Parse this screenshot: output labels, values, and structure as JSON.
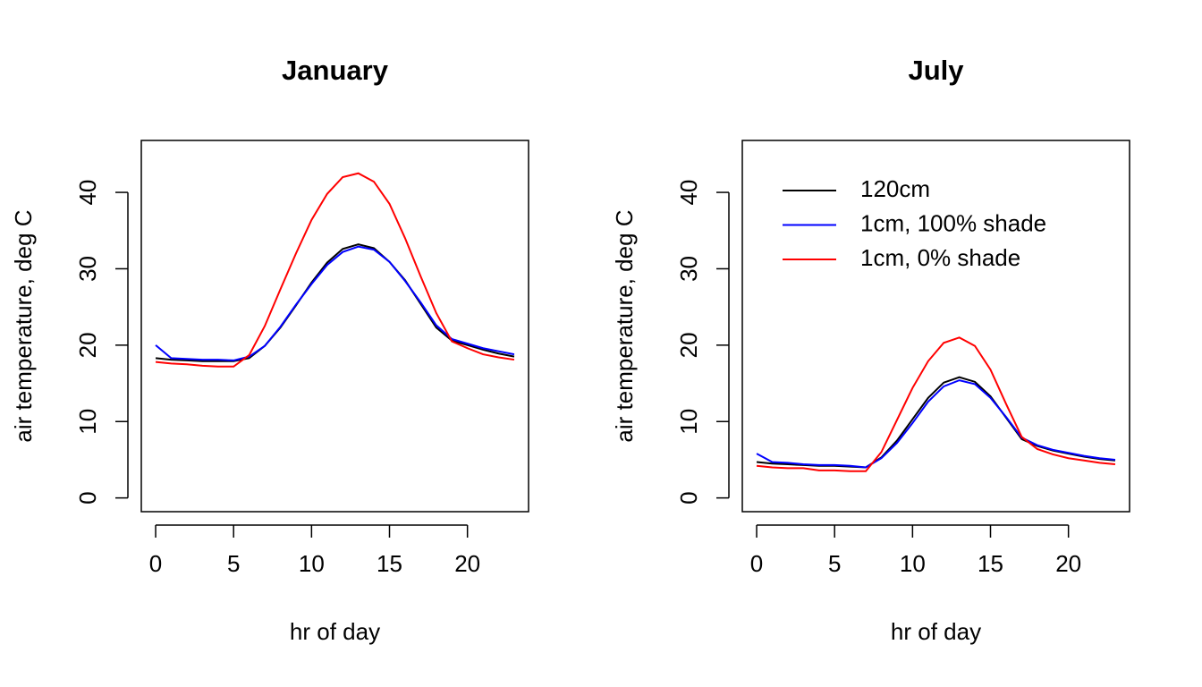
{
  "chart_data": [
    {
      "type": "line",
      "title": "January",
      "xlabel": "hr of day",
      "ylabel": "air temperature, deg C",
      "x": [
        0,
        1,
        2,
        3,
        4,
        5,
        6,
        7,
        8,
        9,
        10,
        11,
        12,
        13,
        14,
        15,
        16,
        17,
        18,
        19,
        20,
        21,
        22,
        23
      ],
      "series": [
        {
          "color": "#000000",
          "values": [
            18.3,
            18.1,
            18.0,
            17.9,
            17.9,
            17.9,
            18.3,
            19.9,
            22.3,
            25.2,
            28.2,
            30.8,
            32.6,
            33.2,
            32.7,
            30.9,
            28.5,
            25.4,
            22.3,
            20.6,
            20.0,
            19.4,
            18.9,
            18.5
          ]
        },
        {
          "color": "#0000ff",
          "values": [
            20.0,
            18.3,
            18.2,
            18.1,
            18.1,
            18.0,
            18.5,
            19.9,
            22.4,
            25.3,
            28.0,
            30.5,
            32.2,
            32.9,
            32.5,
            30.9,
            28.4,
            25.6,
            22.6,
            20.8,
            20.2,
            19.6,
            19.2,
            18.8
          ]
        },
        {
          "color": "#ff0000",
          "values": [
            17.8,
            17.6,
            17.5,
            17.3,
            17.2,
            17.2,
            18.7,
            22.5,
            27.3,
            32.0,
            36.4,
            39.8,
            42.0,
            42.5,
            41.4,
            38.5,
            34.0,
            29.0,
            24.2,
            20.5,
            19.6,
            18.8,
            18.4,
            18.1
          ]
        }
      ],
      "xlim": [
        -0.92,
        23.92
      ],
      "xticks": [
        0,
        5,
        10,
        15,
        20
      ],
      "ylim": [
        -1.8,
        46.8
      ],
      "yticks": [
        0,
        10,
        20,
        30,
        40
      ],
      "legend": false
    },
    {
      "type": "line",
      "title": "July",
      "xlabel": "hr of day",
      "ylabel": "air temperature, deg C",
      "x": [
        0,
        1,
        2,
        3,
        4,
        5,
        6,
        7,
        8,
        9,
        10,
        11,
        12,
        13,
        14,
        15,
        16,
        17,
        18,
        19,
        20,
        21,
        22,
        23
      ],
      "series": [
        {
          "name": "120cm",
          "color": "#000000",
          "values": [
            4.7,
            4.5,
            4.4,
            4.3,
            4.2,
            4.2,
            4.1,
            4.0,
            5.3,
            7.5,
            10.3,
            13.1,
            15.1,
            15.8,
            15.2,
            13.3,
            10.5,
            7.7,
            6.8,
            6.2,
            5.8,
            5.4,
            5.1,
            4.9
          ]
        },
        {
          "name": "1cm, 100% shade",
          "color": "#0000ff",
          "values": [
            5.8,
            4.7,
            4.6,
            4.4,
            4.3,
            4.3,
            4.2,
            4.0,
            5.2,
            7.2,
            9.8,
            12.6,
            14.6,
            15.4,
            14.9,
            13.1,
            10.6,
            7.9,
            6.9,
            6.3,
            5.9,
            5.5,
            5.2,
            5.0
          ]
        },
        {
          "name": "1cm, 0% shade",
          "color": "#ff0000",
          "values": [
            4.2,
            4.0,
            3.9,
            3.9,
            3.6,
            3.6,
            3.5,
            3.5,
            6.0,
            10.2,
            14.4,
            17.9,
            20.3,
            21.0,
            19.9,
            16.8,
            12.3,
            8.0,
            6.4,
            5.7,
            5.2,
            4.9,
            4.6,
            4.4
          ]
        }
      ],
      "xlim": [
        -0.92,
        23.92
      ],
      "xticks": [
        0,
        5,
        10,
        15,
        20
      ],
      "ylim": [
        -1.8,
        46.8
      ],
      "yticks": [
        0,
        10,
        20,
        30,
        40
      ],
      "legend": "topleft"
    }
  ]
}
